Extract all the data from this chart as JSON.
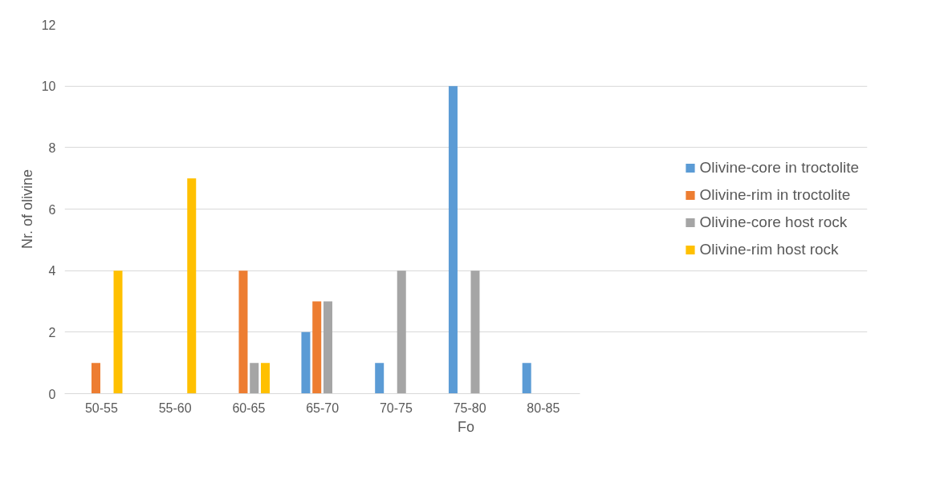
{
  "chart_data": {
    "type": "bar",
    "xlabel": "Fo",
    "ylabel": "Nr. of olivine",
    "categories": [
      "50-55",
      "55-60",
      "60-65",
      "65-70",
      "70-75",
      "75-80",
      "80-85"
    ],
    "series": [
      {
        "name": "Olivine-core in troctolite",
        "color": "#5b9bd5",
        "values": [
          0,
          0,
          0,
          2,
          1,
          10,
          1
        ]
      },
      {
        "name": "Olivine-rim in troctolite",
        "color": "#ed7d31",
        "values": [
          1,
          0,
          4,
          3,
          0,
          0,
          0
        ]
      },
      {
        "name": "Olivine-core host rock",
        "color": "#a5a5a5",
        "values": [
          0,
          0,
          1,
          3,
          4,
          4,
          0
        ]
      },
      {
        "name": "Olivine-rim host rock",
        "color": "#ffc000",
        "values": [
          4,
          7,
          1,
          0,
          0,
          0,
          0
        ]
      }
    ],
    "ylim": [
      0,
      12
    ],
    "yticks": [
      0,
      2,
      4,
      6,
      8,
      10,
      12
    ],
    "grid": "y",
    "legend": "right"
  }
}
